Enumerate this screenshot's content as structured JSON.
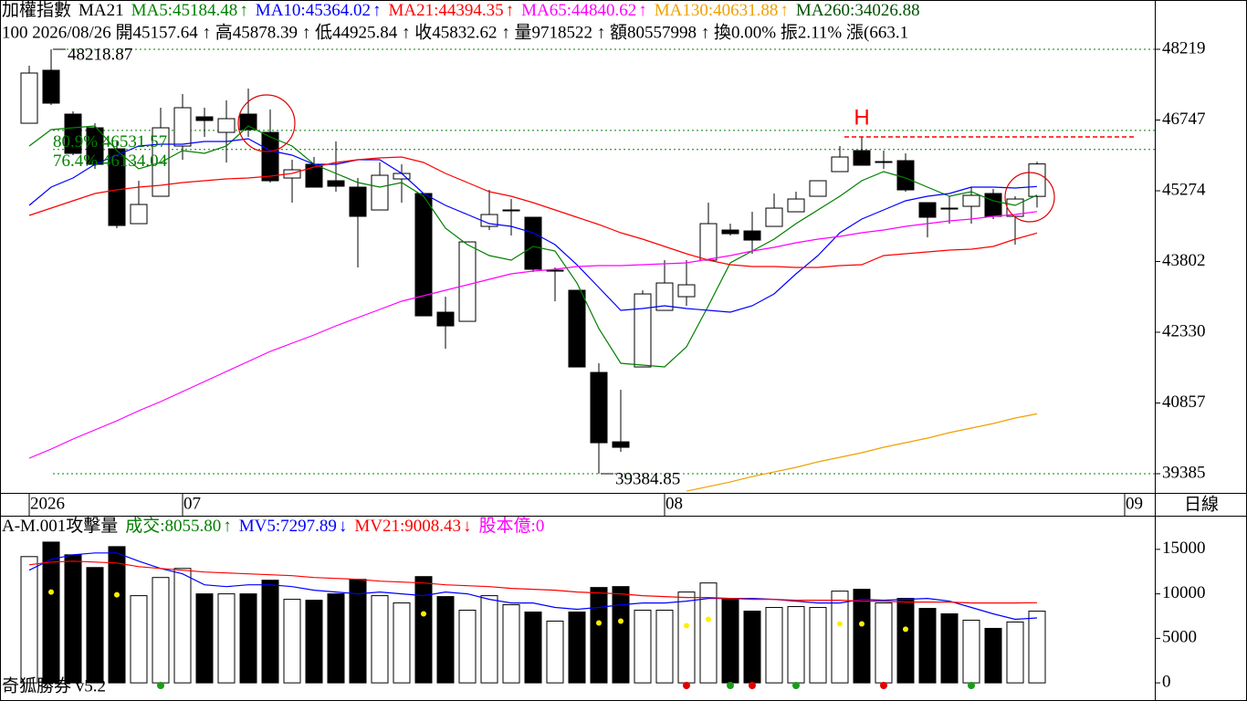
{
  "chart_data": [
    {
      "type": "candlestick",
      "title": "加權指數",
      "indicator": "MA21",
      "info_line": "100 2026/08/26 開45157.64 ↑ 高45878.39 ↑ 低44925.84 ↑ 收45832.62 ↑ 量9718522 ↑ 額80557998 ↑ 換0.00% 振2.11% 漲(663.1",
      "open": [
        46680,
        47782,
        46870,
        46585,
        46148,
        44590,
        45160,
        46205,
        46813,
        46490,
        46870,
        46490,
        45540,
        45825,
        45483,
        45350,
        44875,
        45521,
        45217,
        42747,
        42557,
        44533,
        44856,
        44723,
        43602,
        43203,
        41493,
        40049,
        41607,
        42785,
        43070,
        43830,
        44457,
        44438,
        44533,
        44837,
        45160,
        45673,
        46110,
        45863,
        45901,
        45027,
        44913,
        44951,
        45217,
        44742,
        45157.64
      ],
      "high": [
        47877,
        48218.87,
        46927,
        46680,
        46300,
        45483,
        47003,
        47288,
        47003,
        47155,
        47402,
        46965,
        45920,
        45977,
        46300,
        45540,
        45863,
        45825,
        45217,
        43070,
        44210,
        45293,
        45103,
        44723,
        43678,
        43203,
        41683,
        41132,
        43203,
        43830,
        43830,
        45027,
        44590,
        44837,
        45217,
        45255,
        45483,
        46205,
        46395,
        46110,
        46053,
        45027,
        45160,
        45350,
        45312,
        45160,
        45878.39
      ],
      "low": [
        46680,
        47060,
        46015,
        45730,
        44495,
        44590,
        45160,
        45920,
        46395,
        45863,
        46395,
        45445,
        45027,
        45350,
        45255,
        43678,
        44875,
        45027,
        42671,
        41987,
        42557,
        44457,
        44343,
        43583,
        42975,
        41607,
        39384.85,
        39840,
        41607,
        42785,
        42880,
        43830,
        44343,
        43963,
        44533,
        44837,
        45160,
        45673,
        45806,
        45730,
        45255,
        44305,
        44590,
        44590,
        44685,
        44153,
        44925.84
      ],
      "close": [
        47725,
        47098,
        46053,
        45825,
        44552,
        44989,
        46585,
        47003,
        46737,
        46775,
        46547,
        45483,
        45711,
        45350,
        45369,
        44742,
        45597,
        45635,
        42671,
        42462,
        44210,
        44780,
        44875,
        43640,
        43621,
        41607,
        40030,
        39935,
        43127,
        43355,
        43317,
        44590,
        44381,
        44248,
        44913,
        45103,
        45483,
        45977,
        45806,
        45882,
        45293,
        44723,
        44894,
        45179,
        44742,
        45103,
        45832.62
      ],
      "up_color": "#ffffff",
      "down_color": "#000000",
      "series": [
        {
          "name": "MA5",
          "label": "MA5:45184.48",
          "arrow": "↑",
          "color": "#008000",
          "values": [
            46205,
            46547,
            46585,
            46623,
            46110,
            45730,
            45863,
            46110,
            46053,
            46205,
            46623,
            46395,
            46205,
            45825,
            45635,
            45445,
            45350,
            45445,
            45160,
            44495,
            44153,
            43925,
            43830,
            44115,
            44020,
            43355,
            42405,
            41683,
            41645,
            41607,
            42025,
            42880,
            43773,
            44020,
            44267,
            44590,
            44875,
            45160,
            45483,
            45673,
            45540,
            45350,
            45160,
            45255,
            45065,
            44970,
            45184.48
          ]
        },
        {
          "name": "MA10",
          "label": "MA10:45364.02",
          "arrow": "↑",
          "color": "#0000ff",
          "values": [
            44970,
            45350,
            45540,
            45825,
            46015,
            46205,
            46243,
            46243,
            46300,
            46300,
            46357,
            46110,
            46015,
            45825,
            45825,
            45920,
            45920,
            45635,
            45217,
            44970,
            44780,
            44590,
            44533,
            44400,
            44153,
            43735,
            43260,
            42785,
            42823,
            42880,
            42823,
            42785,
            42747,
            42880,
            43127,
            43545,
            43925,
            44400,
            44685,
            44875,
            45065,
            45160,
            45217,
            45350,
            45350,
            45331,
            45364.02
          ]
        },
        {
          "name": "MA21",
          "label": "MA21:44394.35",
          "arrow": "↑",
          "color": "#ff0000",
          "values": [
            44761,
            44913,
            45065,
            45217,
            45293,
            45350,
            45388,
            45445,
            45483,
            45521,
            45540,
            45578,
            45635,
            45768,
            45863,
            45920,
            45958,
            45977,
            45863,
            45635,
            45445,
            45255,
            45160,
            45027,
            44875,
            44723,
            44571,
            44400,
            44267,
            44115,
            43963,
            43830,
            43735,
            43697,
            43697,
            43678,
            43678,
            43716,
            43735,
            43925,
            43963,
            44001,
            44039,
            44058,
            44115,
            44267,
            44394.35
          ]
        },
        {
          "name": "MA65",
          "label": "MA65:44840.62",
          "arrow": "↑",
          "color": "#ff00ff",
          "values": [
            39707,
            39897,
            40106,
            40296,
            40486,
            40695,
            40885,
            41094,
            41303,
            41512,
            41721,
            41930,
            42101,
            42272,
            42462,
            42633,
            42804,
            42975,
            43089,
            43203,
            43317,
            43431,
            43545,
            43602,
            43640,
            43697,
            43716,
            43716,
            43735,
            43754,
            43773,
            43849,
            43925,
            44020,
            44096,
            44191,
            44267,
            44324,
            44400,
            44457,
            44533,
            44590,
            44647,
            44685,
            44742,
            44780,
            44840.62
          ]
        },
        {
          "name": "MA130",
          "label": "MA130:40631.88",
          "arrow": "↑",
          "color": "#f0a000",
          "values": [
            null,
            null,
            null,
            null,
            null,
            null,
            null,
            null,
            null,
            null,
            null,
            null,
            null,
            null,
            null,
            null,
            null,
            null,
            null,
            null,
            null,
            null,
            null,
            null,
            null,
            null,
            null,
            null,
            null,
            null,
            39023,
            39118,
            39213,
            39327,
            39422,
            39517,
            39631,
            39726,
            39821,
            39935,
            40030,
            40125,
            40239,
            40334,
            40429,
            40543,
            40631.88
          ]
        }
      ],
      "extra_labels": [
        {
          "label": "MA260:34026.88",
          "color": "#005000"
        }
      ],
      "xlim": [
        -1.333,
        51.375
      ],
      "xticks": [
        {
          "value": 0,
          "label": "2026"
        },
        {
          "value": 7,
          "label": "07"
        },
        {
          "value": 29,
          "label": "08"
        },
        {
          "value": 50,
          "label": "09"
        }
      ],
      "x_unit_label": "日線",
      "ylim": [
        38986,
        49245
      ],
      "yticks": [
        48219,
        46747,
        45274,
        43802,
        42330,
        40857,
        39385
      ],
      "extremes": [
        {
          "index": 1,
          "value": 48218.87
        },
        {
          "index": 26,
          "value": 39384.85
        }
      ],
      "levels": [
        {
          "value": 46531.57,
          "label": "80.9% 46531.57"
        },
        {
          "value": 46134.04,
          "label": "76.4% 46134.04"
        }
      ],
      "level_color": "#008000",
      "high_marker": {
        "label": "H",
        "index": 38,
        "value": 46395,
        "color": "#ff0000"
      }
    },
    {
      "type": "bar",
      "title": "A-M.001攻擊量",
      "values": [
        14184,
        15816,
        14388,
        12959,
        15306,
        9796,
        11837,
        12857,
        10000,
        10000,
        10000,
        11531,
        9388,
        9286,
        10000,
        11633,
        9796,
        8980,
        11939,
        9694,
        8163,
        9796,
        8776,
        7959,
        6939,
        7959,
        10714,
        10816,
        8163,
        8163,
        10204,
        11224,
        9388,
        8061,
        8469,
        8571,
        8469,
        10306,
        10510,
        8980,
        9490,
        8367,
        7755,
        7041,
        6122,
        6837,
        8055.8
      ],
      "value_label": {
        "label": "成交:8055.80",
        "arrow": "↑",
        "color": "#008000"
      },
      "series": [
        {
          "name": "MV5",
          "label": "MV5:7297.89",
          "arrow": "↓",
          "color": "#0000ff",
          "values": [
            12653,
            13877,
            14388,
            14592,
            14592,
            13673,
            12857,
            12245,
            11020,
            10816,
            11020,
            11020,
            10816,
            10408,
            10204,
            10000,
            10204,
            10000,
            9796,
            10204,
            10000,
            9388,
            8980,
            8980,
            8469,
            8265,
            8469,
            8775,
            8980,
            8980,
            9184,
            9490,
            9490,
            9490,
            9388,
            9184,
            8980,
            8980,
            9388,
            9286,
            9388,
            9490,
            9184,
            8469,
            7755,
            7143,
            7297.89
          ]
        },
        {
          "name": "MV21",
          "label": "MV21:9008.43",
          "arrow": "↓",
          "color": "#ff0000",
          "values": [
            13265,
            13571,
            13673,
            13571,
            13469,
            13061,
            12857,
            12653,
            12449,
            12347,
            12245,
            12143,
            12041,
            11837,
            11735,
            11633,
            11429,
            11326,
            11224,
            11020,
            10918,
            10816,
            10612,
            10510,
            10408,
            10204,
            10102,
            10000,
            9796,
            9694,
            9592,
            9592,
            9490,
            9388,
            9388,
            9286,
            9286,
            9286,
            9184,
            9184,
            9082,
            9082,
            9082,
            8980,
            8980,
            8980,
            9008.43
          ]
        }
      ],
      "extra_labels": [
        {
          "label": "股本億:0",
          "color": "#ff00ff"
        }
      ],
      "markers": {
        "color": "#ffee00",
        "values": [
          null,
          10204,
          null,
          null,
          9898,
          null,
          null,
          null,
          null,
          null,
          null,
          null,
          null,
          null,
          null,
          null,
          null,
          null,
          7755,
          null,
          null,
          null,
          null,
          null,
          null,
          null,
          6735,
          6939,
          null,
          null,
          6429,
          7143,
          null,
          null,
          null,
          null,
          null,
          6633,
          6633,
          null,
          6020,
          null,
          null,
          null,
          null,
          null,
          null
        ]
      },
      "signal_colors": [
        null,
        null,
        null,
        null,
        null,
        null,
        "#1a9c1a",
        null,
        null,
        null,
        null,
        null,
        null,
        null,
        null,
        null,
        null,
        null,
        null,
        null,
        null,
        null,
        null,
        null,
        null,
        null,
        null,
        null,
        null,
        null,
        "#e00000",
        null,
        "#1a9c1a",
        "#e00000",
        null,
        "#1a9c1a",
        null,
        null,
        null,
        "#e00000",
        null,
        null,
        null,
        "#1a9c1a",
        null,
        null,
        null
      ],
      "ylim": [
        -1730,
        18780
      ],
      "yticks": [
        15000,
        10000,
        5000,
        0
      ]
    }
  ],
  "footer": "奇狐勝券 v5.2"
}
